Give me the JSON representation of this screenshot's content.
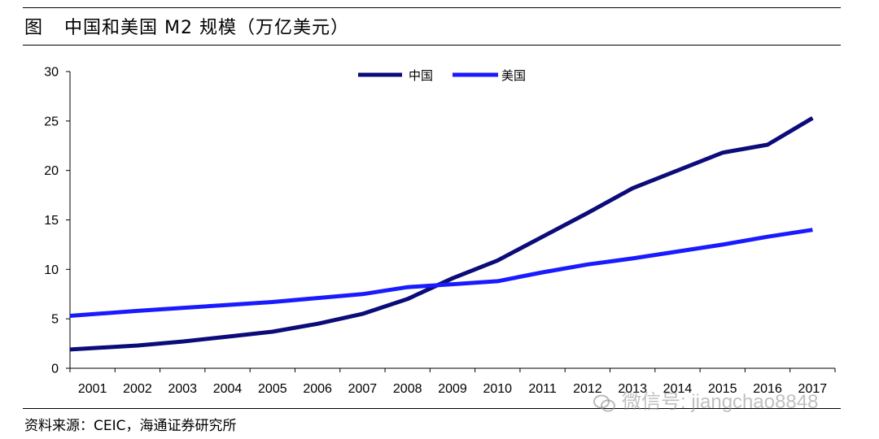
{
  "header": {
    "figure_label": "图",
    "title": "中国和美国 M2 规模（万亿美元）"
  },
  "footer": {
    "source": "资料来源：CEIC，海通证券研究所"
  },
  "watermark": {
    "text": "微信号: jiangchao8848"
  },
  "chart_data": {
    "type": "line",
    "title": "中国和美国 M2 规模（万亿美元）",
    "xlabel": "",
    "ylabel": "",
    "ylim": [
      0,
      30
    ],
    "yticks": [
      0,
      5,
      10,
      15,
      20,
      25,
      30
    ],
    "categories": [
      "2001",
      "2002",
      "2003",
      "2004",
      "2005",
      "2006",
      "2007",
      "2008",
      "2009",
      "2010",
      "2011",
      "2012",
      "2013",
      "2014",
      "2015",
      "2016",
      "2017"
    ],
    "grid": false,
    "legend_position": "top-center",
    "series": [
      {
        "name": "中国",
        "color": "#0b0b7a",
        "values": [
          1.9,
          2.3,
          2.7,
          3.2,
          3.7,
          4.5,
          5.5,
          7.0,
          9.1,
          10.9,
          13.3,
          15.7,
          18.2,
          20.0,
          21.8,
          22.6,
          25.3
        ]
      },
      {
        "name": "美国",
        "color": "#1a1aff",
        "values": [
          5.3,
          5.8,
          6.1,
          6.4,
          6.7,
          7.1,
          7.5,
          8.2,
          8.5,
          8.8,
          9.7,
          10.5,
          11.1,
          11.8,
          12.5,
          13.3,
          14.0
        ]
      }
    ]
  }
}
